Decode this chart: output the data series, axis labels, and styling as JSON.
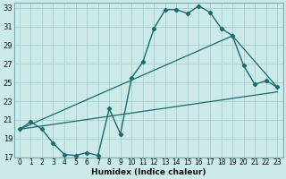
{
  "xlabel": "Humidex (Indice chaleur)",
  "bg_color": "#cceaea",
  "grid_color": "#aacfcf",
  "line_color": "#1a6b6b",
  "xlim": [
    -0.5,
    23.5
  ],
  "ylim": [
    17,
    33.5
  ],
  "yticks": [
    17,
    19,
    21,
    23,
    25,
    27,
    29,
    31,
    33
  ],
  "xticks": [
    0,
    1,
    2,
    3,
    4,
    5,
    6,
    7,
    8,
    9,
    10,
    11,
    12,
    13,
    14,
    15,
    16,
    17,
    18,
    19,
    20,
    21,
    22,
    23
  ],
  "curve1_x": [
    0,
    1,
    2,
    3,
    4,
    5,
    6,
    7,
    8,
    9,
    10,
    11,
    12,
    13,
    14,
    15,
    16,
    17,
    18,
    19,
    20,
    21,
    22,
    23
  ],
  "curve1_y": [
    20.0,
    20.8,
    20.0,
    18.5,
    17.3,
    17.2,
    17.5,
    17.2,
    22.2,
    19.5,
    25.5,
    27.2,
    30.8,
    32.8,
    32.8,
    32.4,
    33.2,
    32.5,
    30.8,
    30.0,
    26.8,
    24.8,
    25.2,
    24.5
  ],
  "curve2_x": [
    0,
    19,
    23
  ],
  "curve2_y": [
    20.0,
    30.0,
    24.5
  ],
  "curve3_x": [
    0,
    23
  ],
  "curve3_y": [
    20.0,
    24.0
  ],
  "xlabel_fontsize": 6.5,
  "tick_fontsize": 5.5
}
